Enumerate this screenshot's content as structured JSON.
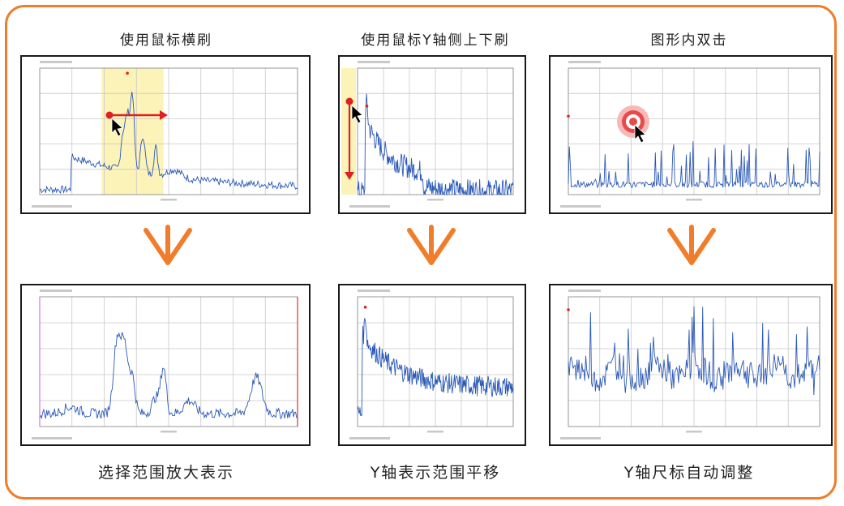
{
  "columns": [
    {
      "top_caption": "使用鼠标横刷",
      "bottom_caption": "选择范围放大表示",
      "action_icon": "horizontal-drag-arrow-icon",
      "result_icon": "zoomed-spectrum"
    },
    {
      "top_caption": "使用鼠标Y轴侧上下刷",
      "bottom_caption": "Y轴表示范围平移",
      "action_icon": "vertical-drag-arrow-icon",
      "result_icon": "shifted-spectrum"
    },
    {
      "top_caption": "图形内双击",
      "bottom_caption": "Y轴尺标自动调整",
      "action_icon": "double-click-target-icon",
      "result_icon": "autoscaled-spectrum"
    }
  ],
  "colors": {
    "frame": "#f07d2b",
    "flow_arrow": "#f07d2b",
    "trace": "#2b59b8",
    "selection": "#fbf3b8",
    "marker": "#e02020"
  }
}
